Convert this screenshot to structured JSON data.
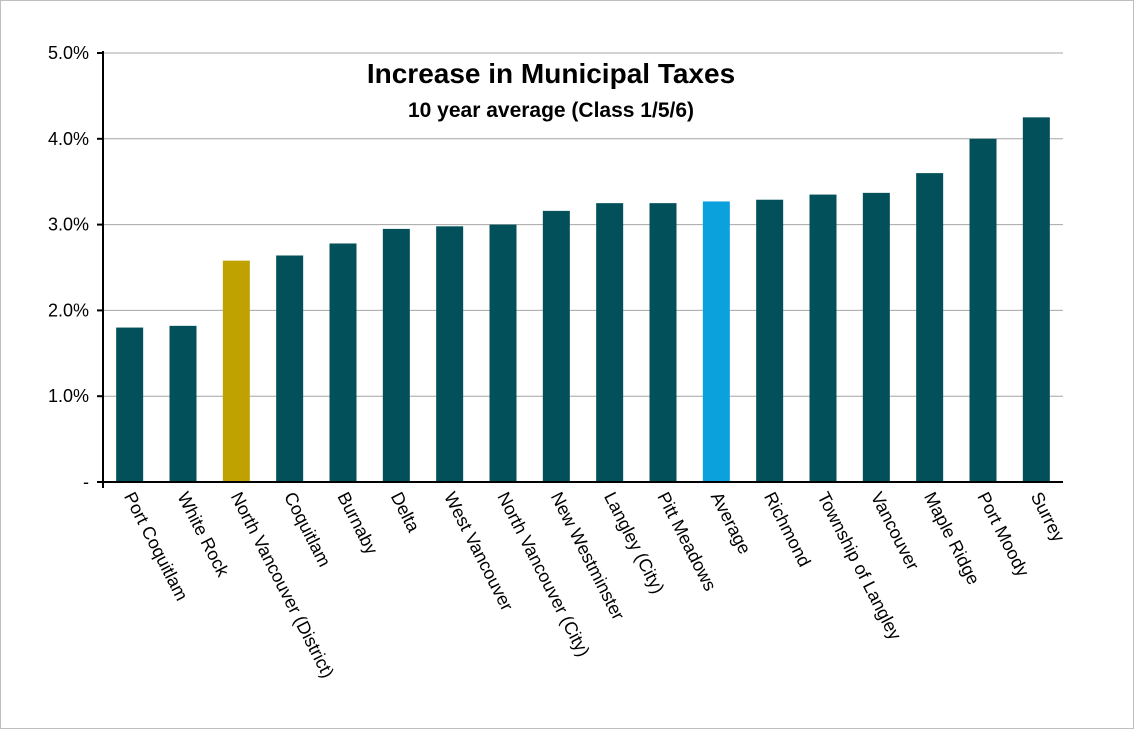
{
  "chart_data": {
    "type": "bar",
    "title": "Increase in Municipal Taxes",
    "subtitle": "10 year average (Class 1/5/6)",
    "xlabel": "",
    "ylabel": "",
    "ylim": [
      0,
      5.0
    ],
    "yticks": [
      "-",
      "1.0%",
      "2.0%",
      "3.0%",
      "4.0%",
      "5.0%"
    ],
    "grid": true,
    "legend": "none",
    "categories": [
      "Port Coquitlam",
      "White Rock",
      "North Vancouver (District)",
      "Coquitlam",
      "Burnaby",
      "Delta",
      "West Vancouver",
      "North Vancouver (City)",
      "New Westminster",
      "Langley (City)",
      "Pitt Meadows",
      "Average",
      "Richmond",
      "Township of Langley",
      "Vancouver",
      "Maple Ridge",
      "Port Moody",
      "Surrey"
    ],
    "values": [
      1.8,
      1.82,
      2.58,
      2.64,
      2.78,
      2.95,
      2.98,
      3.0,
      3.16,
      3.25,
      3.25,
      3.27,
      3.29,
      3.35,
      3.37,
      3.6,
      4.0,
      4.25
    ],
    "colors": {
      "default": "#01505a",
      "highlight": "#bfa200",
      "average": "#0aa1dd",
      "grid": "#a6a6a6",
      "axis": "#000000"
    },
    "bar_color_keys": [
      "default",
      "default",
      "highlight",
      "default",
      "default",
      "default",
      "default",
      "default",
      "default",
      "default",
      "default",
      "average",
      "default",
      "default",
      "default",
      "default",
      "default",
      "default"
    ]
  }
}
